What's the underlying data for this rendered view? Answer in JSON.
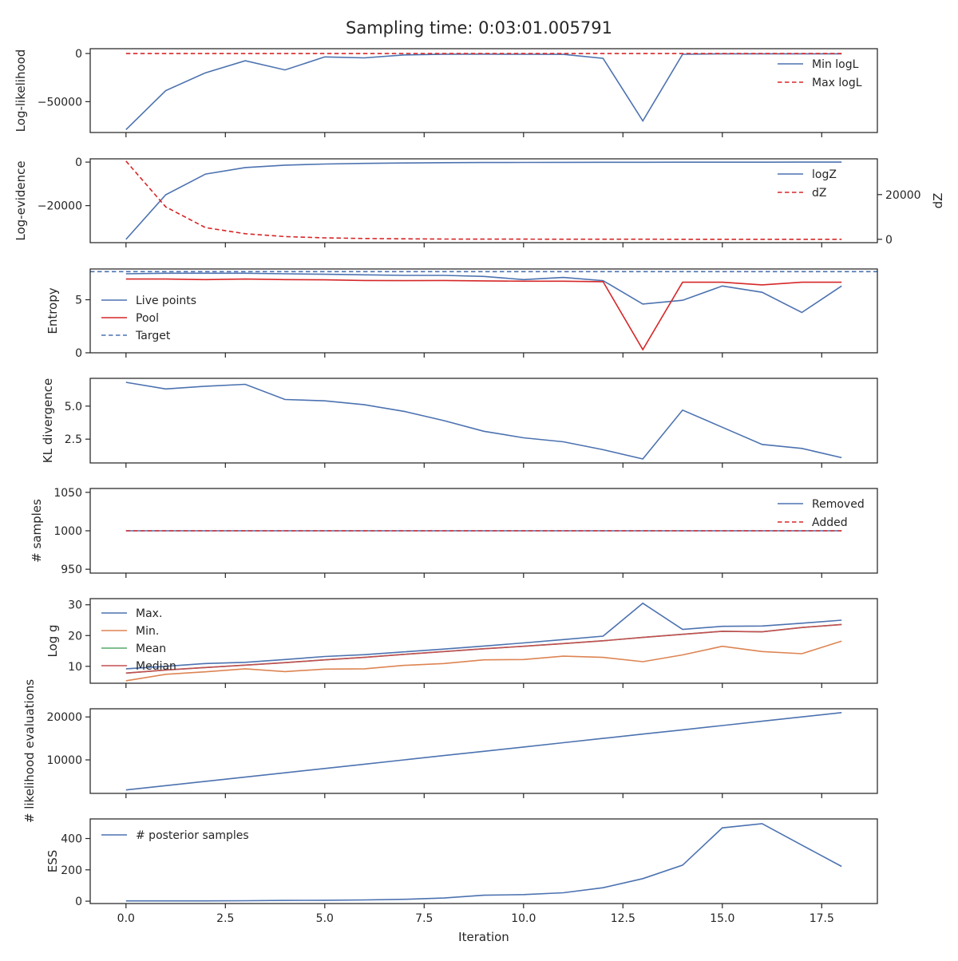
{
  "figure": {
    "title": "Sampling time: 0:03:01.005791"
  },
  "colors": {
    "blue": "#4c72b0",
    "orange": "#dd8452",
    "green": "#55a868",
    "red": "#c44e52",
    "dashed_red": "#d62728",
    "axes": "#262626"
  },
  "chart_data": [
    {
      "type": "line",
      "ylabel": "Log-likelihood",
      "xlim": [
        -0.9,
        18.9
      ],
      "ylim": [
        -82000,
        5000
      ],
      "yticks": [
        0,
        -50000
      ],
      "ytick_labels": [
        "0",
        "−50000"
      ],
      "legend_position": "upper-right",
      "series": [
        {
          "name": "Min logL",
          "color": "#4c72b0",
          "dash": false,
          "x": [
            0,
            1,
            2,
            3,
            4,
            5,
            6,
            7,
            8,
            9,
            10,
            11,
            12,
            13,
            14,
            15,
            16,
            17,
            18
          ],
          "y": [
            -79000,
            -38500,
            -20000,
            -7500,
            -17000,
            -3500,
            -4500,
            -1500,
            -700,
            -600,
            -800,
            -900,
            -5000,
            -70000,
            -800,
            -300,
            -300,
            -300,
            -300
          ]
        },
        {
          "name": "Max logL",
          "color": "#d62728",
          "dash": true,
          "x": [
            0,
            18
          ],
          "y": [
            -80,
            -80
          ]
        }
      ]
    },
    {
      "type": "line",
      "ylabel": "Log-evidence",
      "ylabel_right": "dZ",
      "xlim": [
        -0.9,
        18.9
      ],
      "ylim": [
        -37000,
        1500
      ],
      "yticks": [
        0,
        -20000
      ],
      "ytick_labels": [
        "0",
        "−20000"
      ],
      "ylim_right": [
        -1500,
        36000
      ],
      "yticks_right": [
        0,
        20000
      ],
      "ytick_labels_right": [
        "0",
        "20000"
      ],
      "legend_position": "upper-right",
      "series": [
        {
          "name": "logZ",
          "color": "#4c72b0",
          "dash": false,
          "axis": "left",
          "x": [
            0,
            1,
            2,
            3,
            4,
            5,
            6,
            7,
            8,
            9,
            10,
            11,
            12,
            13,
            14,
            15,
            16,
            17,
            18
          ],
          "y": [
            -35500,
            -15000,
            -5500,
            -2500,
            -1400,
            -900,
            -600,
            -400,
            -250,
            -200,
            -150,
            -100,
            -80,
            -60,
            -50,
            -40,
            -30,
            -20,
            -10
          ]
        },
        {
          "name": "dZ",
          "color": "#d62728",
          "dash": true,
          "axis": "right",
          "x": [
            0,
            1,
            2,
            3,
            4,
            5,
            6,
            7,
            8,
            9,
            10,
            11,
            12,
            13,
            14,
            15,
            16,
            17,
            18
          ],
          "y": [
            35000,
            14500,
            5200,
            2500,
            1200,
            650,
            350,
            200,
            120,
            80,
            60,
            40,
            30,
            20,
            15,
            10,
            8,
            6,
            5
          ]
        }
      ]
    },
    {
      "type": "line",
      "ylabel": "Entropy",
      "xlim": [
        -0.9,
        18.9
      ],
      "ylim": [
        0,
        7.9
      ],
      "yticks": [
        0,
        5
      ],
      "ytick_labels": [
        "0",
        "5"
      ],
      "legend_position": "center-left",
      "series": [
        {
          "name": "Live points",
          "color": "#4c72b0",
          "dash": false,
          "x": [
            0,
            1,
            2,
            3,
            4,
            5,
            6,
            7,
            8,
            9,
            10,
            11,
            12,
            13,
            14,
            15,
            16,
            17,
            18
          ],
          "y": [
            7.45,
            7.5,
            7.5,
            7.5,
            7.45,
            7.4,
            7.35,
            7.3,
            7.3,
            7.2,
            6.9,
            7.1,
            6.8,
            4.6,
            4.95,
            6.3,
            5.7,
            3.8,
            6.3
          ]
        },
        {
          "name": "Pool",
          "color": "#d62728",
          "dash": false,
          "x": [
            0,
            1,
            2,
            3,
            4,
            5,
            6,
            7,
            8,
            9,
            10,
            11,
            12,
            13,
            14,
            15,
            16,
            17,
            18
          ],
          "y": [
            6.95,
            6.95,
            6.9,
            6.95,
            6.9,
            6.88,
            6.82,
            6.8,
            6.82,
            6.78,
            6.75,
            6.75,
            6.7,
            0.3,
            6.65,
            6.65,
            6.4,
            6.65,
            6.65
          ]
        },
        {
          "name": "Target",
          "color": "#4c72b0",
          "dash": true,
          "x": [
            -0.9,
            18.9
          ],
          "y": [
            7.65,
            7.65
          ]
        }
      ]
    },
    {
      "type": "line",
      "ylabel": "KL divergence",
      "xlim": [
        -0.9,
        18.9
      ],
      "ylim": [
        0.7,
        7.1
      ],
      "yticks": [
        5.0,
        2.5
      ],
      "ytick_labels": [
        "5.0",
        "2.5"
      ],
      "series": [
        {
          "name": "",
          "color": "#4c72b0",
          "dash": false,
          "x": [
            0,
            1,
            2,
            3,
            4,
            5,
            6,
            7,
            8,
            9,
            10,
            11,
            12,
            13,
            14,
            15,
            16,
            17,
            18
          ],
          "y": [
            6.8,
            6.3,
            6.5,
            6.65,
            5.5,
            5.4,
            5.1,
            4.6,
            3.9,
            3.1,
            2.6,
            2.3,
            1.7,
            1.0,
            4.7,
            3.4,
            2.1,
            1.8,
            1.1
          ]
        }
      ]
    },
    {
      "type": "line",
      "ylabel": "# samples",
      "xlim": [
        -0.9,
        18.9
      ],
      "ylim": [
        945,
        1055
      ],
      "yticks": [
        1050,
        1000,
        950
      ],
      "ytick_labels": [
        "1050",
        "1000",
        "950"
      ],
      "legend_position": "upper-right",
      "series": [
        {
          "name": "Removed",
          "color": "#4c72b0",
          "dash": false,
          "x": [
            0,
            18
          ],
          "y": [
            1000,
            1000
          ]
        },
        {
          "name": "Added",
          "color": "#d62728",
          "dash": true,
          "x": [
            0,
            18
          ],
          "y": [
            1000,
            1000
          ]
        }
      ]
    },
    {
      "type": "line",
      "ylabel": "Log g",
      "xlim": [
        -0.9,
        18.9
      ],
      "ylim": [
        4.5,
        32
      ],
      "yticks": [
        30,
        20,
        10
      ],
      "ytick_labels": [
        "30",
        "20",
        "10"
      ],
      "legend_position": "upper-left",
      "series": [
        {
          "name": "Max.",
          "color": "#4c72b0",
          "dash": false,
          "x": [
            0,
            1,
            2,
            3,
            4,
            5,
            6,
            7,
            8,
            9,
            10,
            11,
            12,
            13,
            14,
            15,
            16,
            17,
            18
          ],
          "y": [
            9.2,
            10.0,
            10.9,
            11.3,
            12.2,
            13.2,
            13.8,
            14.7,
            15.6,
            16.6,
            17.6,
            18.7,
            19.8,
            30.5,
            22.0,
            23.0,
            23.1,
            24.0,
            25.0
          ]
        },
        {
          "name": "Min.",
          "color": "#dd8452",
          "dash": false,
          "x": [
            0,
            1,
            2,
            3,
            4,
            5,
            6,
            7,
            8,
            9,
            10,
            11,
            12,
            13,
            14,
            15,
            16,
            17,
            18
          ],
          "y": [
            5.3,
            7.4,
            8.2,
            9.2,
            8.3,
            9.1,
            9.2,
            10.3,
            10.9,
            12.1,
            12.2,
            13.3,
            12.9,
            11.5,
            13.7,
            16.5,
            14.8,
            14.1,
            18.2
          ]
        },
        {
          "name": "Mean",
          "color": "#55a868",
          "dash": false,
          "x": [
            0,
            1,
            2,
            3,
            4,
            5,
            6,
            7,
            8,
            9,
            10,
            11,
            12,
            13,
            14,
            15,
            16,
            17,
            18
          ],
          "y": [
            7.8,
            8.8,
            9.6,
            10.4,
            11.2,
            12.1,
            12.9,
            13.9,
            14.8,
            15.7,
            16.5,
            17.4,
            18.3,
            19.4,
            20.4,
            21.4,
            21.2,
            22.6,
            23.6
          ]
        },
        {
          "name": "Median",
          "color": "#c44e52",
          "dash": false,
          "x": [
            0,
            1,
            2,
            3,
            4,
            5,
            6,
            7,
            8,
            9,
            10,
            11,
            12,
            13,
            14,
            15,
            16,
            17,
            18
          ],
          "y": [
            7.8,
            8.8,
            9.6,
            10.4,
            11.2,
            12.1,
            12.9,
            13.9,
            14.8,
            15.7,
            16.5,
            17.4,
            18.3,
            19.4,
            20.4,
            21.4,
            21.2,
            22.6,
            23.6
          ]
        }
      ]
    },
    {
      "type": "line",
      "ylabel": "# likelihood evaluations",
      "xlim": [
        -0.9,
        18.9
      ],
      "ylim": [
        2200,
        21900
      ],
      "yticks": [
        20000,
        10000
      ],
      "ytick_labels": [
        "20000",
        "10000"
      ],
      "series": [
        {
          "name": "",
          "color": "#4c72b0",
          "dash": false,
          "x": [
            0,
            1,
            2,
            3,
            4,
            5,
            6,
            7,
            8,
            9,
            10,
            11,
            12,
            13,
            14,
            15,
            16,
            17,
            18
          ],
          "y": [
            3000,
            4000,
            5000,
            6000,
            7000,
            8000,
            9000,
            10000,
            11000,
            12000,
            13000,
            14000,
            15000,
            16000,
            17000,
            18000,
            19000,
            20000,
            21000
          ]
        }
      ]
    },
    {
      "type": "line",
      "ylabel": "ESS",
      "xlabel": "Iteration",
      "xlim": [
        -0.9,
        18.9
      ],
      "ylim": [
        -15,
        525
      ],
      "yticks": [
        400,
        200,
        0
      ],
      "ytick_labels": [
        "400",
        "200",
        "0"
      ],
      "xticks": [
        0,
        2.5,
        5,
        7.5,
        10,
        12.5,
        15,
        17.5
      ],
      "xtick_labels": [
        "0.0",
        "2.5",
        "5.0",
        "7.5",
        "10.0",
        "12.5",
        "15.0",
        "17.5"
      ],
      "legend_position": "upper-left",
      "series": [
        {
          "name": "# posterior samples",
          "color": "#4c72b0",
          "dash": false,
          "x": [
            0,
            1,
            2,
            3,
            4,
            5,
            6,
            7,
            8,
            9,
            10,
            11,
            12,
            13,
            14,
            15,
            16,
            17,
            18
          ],
          "y": [
            2,
            2,
            2,
            3,
            5,
            6,
            8,
            12,
            20,
            38,
            42,
            54,
            86,
            144,
            230,
            468,
            495,
            358,
            222
          ]
        }
      ]
    }
  ]
}
